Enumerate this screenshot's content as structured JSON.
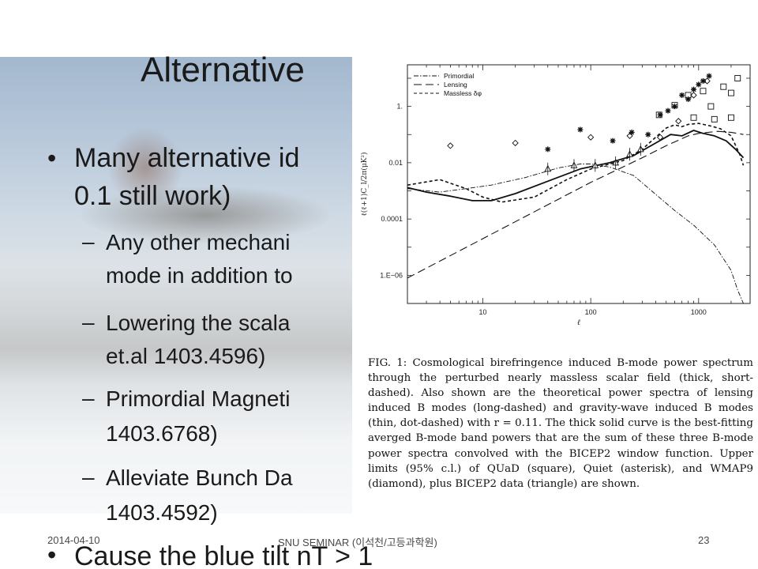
{
  "slide": {
    "title": "Alternative",
    "bullets": [
      {
        "line1": "Many alternative id",
        "line2": "0.1 still work)"
      },
      {
        "line1": "Cause the blue tilt nT > 1"
      }
    ],
    "subbullets": [
      {
        "line1": "Any other mechani",
        "line2": "mode in addition to"
      },
      {
        "line1": "Lowering the scala",
        "line2": "et.al 1403.4596)"
      },
      {
        "line1": "Primordial Magneti",
        "line2": "1403.6768)"
      },
      {
        "line1": "Alleviate Bunch Da",
        "line2": "1403.4592)"
      }
    ],
    "bullet_symbol": "•",
    "dash_symbol": "–"
  },
  "footer": {
    "date": "2014-04-10",
    "center": "SNU SEMINAR (이석천/고등과학원)",
    "page": "23"
  },
  "figure": {
    "caption": "FIG. 1: Cosmological birefringence induced B-mode power spectrum through the perturbed nearly massless scalar field (thick, short-dashed). Also shown are the theoretical power spectra of lensing induced B modes (long-dashed) and gravity-wave induced B modes (thin, dot-dashed) with r = 0.11. The thick solid curve is the best-fitting averged B-mode band powers that are the sum of these three B-mode power spectra convolved with the BICEP2 window function. Upper limits (95% c.l.) of QUaD (square), Quiet (asterisk), and WMAP9 (diamond), plus BICEP2 data (triangle) are shown.",
    "chart_data": {
      "type": "line",
      "xlabel": "ℓ",
      "ylabel": "ℓ(ℓ+1)C_l/2π(μK²)",
      "x_scale": "log",
      "y_scale": "log",
      "xlim": [
        2,
        3000
      ],
      "ylim": [
        1e-07,
        30
      ],
      "x_ticks": [
        {
          "v": 10,
          "label": "10"
        },
        {
          "v": 100,
          "label": "100"
        },
        {
          "v": 1000,
          "label": "1000"
        }
      ],
      "y_ticks": [
        {
          "v": 1,
          "label": "1."
        },
        {
          "v": 0.01,
          "label": "0.01"
        },
        {
          "v": 0.0001,
          "label": "0.0001"
        },
        {
          "v": 1e-06,
          "label": "1.E−06"
        }
      ],
      "legend_position": "top-left",
      "legend": [
        {
          "label": "Primordial",
          "style": "dashdot"
        },
        {
          "label": "Lensing",
          "style": "longdash"
        },
        {
          "label": "Massless δφ",
          "style": "shortdash"
        }
      ],
      "series": [
        {
          "name": "Primordial",
          "style": "dashdot",
          "width": 0.9,
          "x": [
            2,
            4,
            7,
            12,
            25,
            50,
            80,
            100,
            150,
            250,
            400,
            600,
            900,
            1400,
            2000,
            2300,
            2600
          ],
          "y": [
            0.0012,
            0.0009,
            0.0012,
            0.0016,
            0.003,
            0.0065,
            0.009,
            0.009,
            0.007,
            0.0035,
            0.00075,
            0.0002,
            6e-05,
            1.2e-05,
            1.5e-06,
            3e-07,
            8e-08
          ]
        },
        {
          "name": "Lensing",
          "style": "longdash",
          "width": 1.1,
          "x": [
            2,
            10,
            50,
            100,
            300,
            500,
            800,
            1000,
            1500,
            2000,
            2600
          ],
          "y": [
            8e-07,
            2e-05,
            0.0005,
            0.002,
            0.015,
            0.04,
            0.09,
            0.11,
            0.13,
            0.12,
            0.1
          ]
        },
        {
          "name": "Massless δφ",
          "style": "shortdash",
          "width": 1.6,
          "x": [
            2,
            4,
            7,
            10,
            15,
            30,
            60,
            100,
            200,
            300,
            400,
            500,
            600,
            700,
            800,
            1000,
            1300,
            1600,
            2000,
            2400,
            2600
          ],
          "y": [
            0.0016,
            0.0025,
            0.0012,
            0.0006,
            0.0004,
            0.0006,
            0.0025,
            0.006,
            0.012,
            0.03,
            0.08,
            0.17,
            0.22,
            0.19,
            0.23,
            0.25,
            0.2,
            0.16,
            0.09,
            0.02,
            0.008
          ]
        },
        {
          "name": "Best-fit",
          "style": "solid",
          "width": 1.8,
          "x": [
            2,
            3,
            5,
            8,
            12,
            20,
            40,
            80,
            150,
            250,
            400,
            550,
            700,
            900,
            1100,
            1400,
            1800,
            2200,
            2600
          ],
          "y": [
            0.0013,
            0.0009,
            0.00065,
            0.00045,
            0.00045,
            0.0008,
            0.0022,
            0.006,
            0.01,
            0.018,
            0.05,
            0.1,
            0.09,
            0.14,
            0.11,
            0.09,
            0.06,
            0.03,
            0.015
          ]
        }
      ],
      "markers": {
        "diamond": [
          [
            5,
            0.04
          ],
          [
            20,
            0.05
          ],
          [
            100,
            0.08
          ],
          [
            230,
            0.09
          ],
          [
            440,
            0.08
          ],
          [
            650,
            0.3
          ],
          [
            900,
            2.5
          ],
          [
            1200,
            8
          ]
        ],
        "square": [
          [
            430,
            0.5
          ],
          [
            600,
            1.1
          ],
          [
            800,
            2.5
          ],
          [
            1100,
            3.5
          ],
          [
            1300,
            1.0
          ],
          [
            1700,
            5
          ],
          [
            2000,
            3
          ],
          [
            2300,
            10
          ],
          [
            2000,
            0.4
          ],
          [
            900,
            0.4
          ],
          [
            1400,
            0.35
          ]
        ],
        "asterisk": [
          [
            40,
            0.03
          ],
          [
            80,
            0.15
          ],
          [
            160,
            0.06
          ],
          [
            240,
            0.12
          ],
          [
            340,
            0.1
          ],
          [
            440,
            0.5
          ],
          [
            520,
            0.7
          ],
          [
            600,
            1.0
          ],
          [
            700,
            2.5
          ],
          [
            800,
            1.8
          ],
          [
            900,
            4
          ],
          [
            1000,
            6
          ],
          [
            1100,
            8
          ],
          [
            1250,
            12
          ]
        ],
        "triangle": [
          [
            40,
            0.006
          ],
          [
            70,
            0.008
          ],
          [
            110,
            0.008
          ],
          [
            170,
            0.01
          ],
          [
            230,
            0.02
          ],
          [
            290,
            0.03
          ]
        ]
      }
    }
  }
}
